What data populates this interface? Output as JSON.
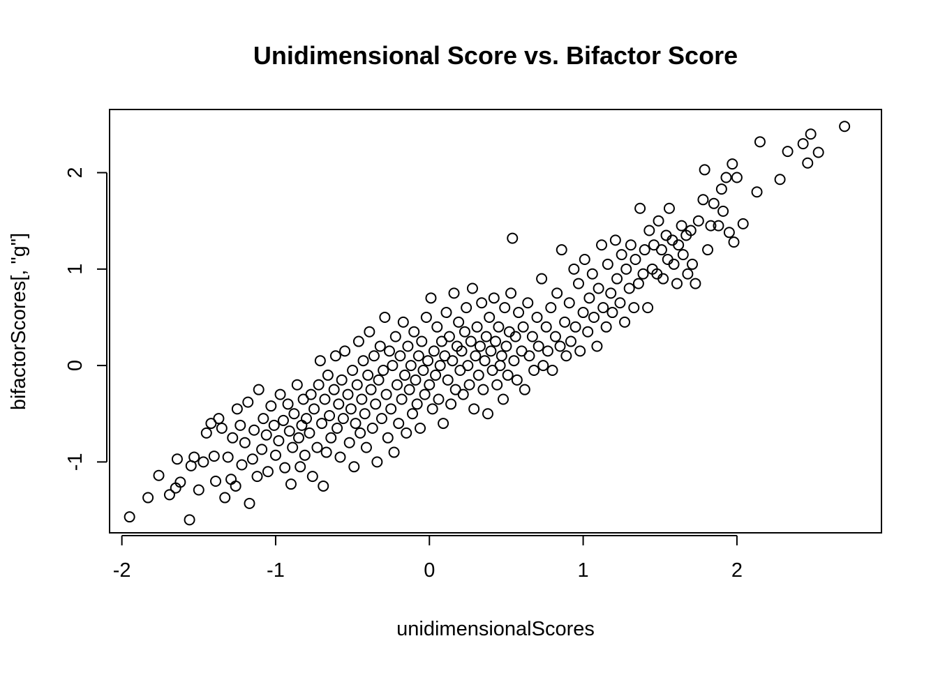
{
  "chart_data": {
    "type": "scatter",
    "title": "Unidimensional Score vs. Bifactor Score",
    "xlabel": "unidimensionalScores",
    "ylabel": "bifactorScores[, \"g\"]",
    "xlim": [
      -2.08,
      2.94
    ],
    "ylim": [
      -1.735,
      2.655
    ],
    "xticks": [
      -2,
      -1,
      0,
      1,
      2
    ],
    "xtick_labels": [
      "-2",
      "-1",
      "0",
      "1",
      "2"
    ],
    "yticks": [
      -1,
      0,
      1,
      2
    ],
    "ytick_labels": [
      "-1",
      "0",
      "1",
      "2"
    ],
    "grid": false,
    "legend": "none",
    "marker": "open-circle",
    "point_color": "#000000",
    "points": [
      [
        -1.95,
        -1.57
      ],
      [
        -1.83,
        -1.37
      ],
      [
        -1.76,
        -1.14
      ],
      [
        -1.69,
        -1.34
      ],
      [
        -1.65,
        -1.27
      ],
      [
        -1.64,
        -0.97
      ],
      [
        -1.62,
        -1.21
      ],
      [
        -1.56,
        -1.6
      ],
      [
        -1.55,
        -1.04
      ],
      [
        -1.53,
        -0.95
      ],
      [
        -1.5,
        -1.29
      ],
      [
        -1.47,
        -1.0
      ],
      [
        -1.45,
        -0.7
      ],
      [
        -1.42,
        -0.6
      ],
      [
        -1.4,
        -0.94
      ],
      [
        -1.39,
        -1.2
      ],
      [
        -1.37,
        -0.55
      ],
      [
        -1.35,
        -0.65
      ],
      [
        -1.33,
        -1.37
      ],
      [
        -1.31,
        -0.95
      ],
      [
        -1.29,
        -1.18
      ],
      [
        -1.28,
        -0.75
      ],
      [
        -1.26,
        -1.25
      ],
      [
        -1.25,
        -0.45
      ],
      [
        -1.23,
        -0.62
      ],
      [
        -1.22,
        -1.03
      ],
      [
        -1.2,
        -0.8
      ],
      [
        -1.18,
        -0.38
      ],
      [
        -1.17,
        -1.43
      ],
      [
        -1.15,
        -0.97
      ],
      [
        -1.14,
        -0.67
      ],
      [
        -1.12,
        -1.15
      ],
      [
        -1.11,
        -0.25
      ],
      [
        -1.09,
        -0.87
      ],
      [
        -1.08,
        -0.55
      ],
      [
        -1.06,
        -0.72
      ],
      [
        -1.05,
        -1.1
      ],
      [
        -1.03,
        -0.42
      ],
      [
        -1.01,
        -0.62
      ],
      [
        -1.0,
        -0.93
      ],
      [
        -0.98,
        -0.78
      ],
      [
        -0.97,
        -0.3
      ],
      [
        -0.95,
        -0.57
      ],
      [
        -0.94,
        -1.06
      ],
      [
        -0.92,
        -0.4
      ],
      [
        -0.91,
        -0.68
      ],
      [
        -0.9,
        -1.23
      ],
      [
        -0.89,
        -0.85
      ],
      [
        -0.88,
        -0.5
      ],
      [
        -0.86,
        -0.2
      ],
      [
        -0.85,
        -0.75
      ],
      [
        -0.84,
        -1.05
      ],
      [
        -0.83,
        -0.62
      ],
      [
        -0.82,
        -0.35
      ],
      [
        -0.81,
        -0.93
      ],
      [
        -0.8,
        -0.55
      ],
      [
        -0.78,
        -0.7
      ],
      [
        -0.77,
        -0.3
      ],
      [
        -0.76,
        -1.15
      ],
      [
        -0.75,
        -0.45
      ],
      [
        -0.73,
        -0.85
      ],
      [
        -0.72,
        -0.2
      ],
      [
        -0.71,
        0.05
      ],
      [
        -0.7,
        -0.6
      ],
      [
        -0.69,
        -1.25
      ],
      [
        -0.68,
        -0.35
      ],
      [
        -0.67,
        -0.9
      ],
      [
        -0.66,
        -0.1
      ],
      [
        -0.65,
        -0.52
      ],
      [
        -0.64,
        -0.75
      ],
      [
        -0.62,
        -0.25
      ],
      [
        -0.61,
        0.1
      ],
      [
        -0.6,
        -0.65
      ],
      [
        -0.59,
        -0.4
      ],
      [
        -0.58,
        -0.95
      ],
      [
        -0.57,
        -0.15
      ],
      [
        -0.56,
        -0.55
      ],
      [
        -0.55,
        0.15
      ],
      [
        -0.53,
        -0.3
      ],
      [
        -0.52,
        -0.8
      ],
      [
        -0.51,
        -0.45
      ],
      [
        -0.5,
        -0.05
      ],
      [
        -0.49,
        -1.05
      ],
      [
        -0.48,
        -0.6
      ],
      [
        -0.47,
        -0.2
      ],
      [
        -0.46,
        0.25
      ],
      [
        -0.45,
        -0.7
      ],
      [
        -0.44,
        -0.35
      ],
      [
        -0.43,
        0.05
      ],
      [
        -0.42,
        -0.5
      ],
      [
        -0.41,
        -0.85
      ],
      [
        -0.4,
        -0.1
      ],
      [
        -0.39,
        0.35
      ],
      [
        -0.38,
        -0.25
      ],
      [
        -0.37,
        -0.65
      ],
      [
        -0.36,
        0.1
      ],
      [
        -0.35,
        -0.4
      ],
      [
        -0.34,
        -1.0
      ],
      [
        -0.33,
        -0.15
      ],
      [
        -0.32,
        0.2
      ],
      [
        -0.31,
        -0.55
      ],
      [
        -0.3,
        -0.05
      ],
      [
        -0.29,
        0.5
      ],
      [
        -0.28,
        -0.3
      ],
      [
        -0.27,
        -0.75
      ],
      [
        -0.26,
        0.15
      ],
      [
        -0.25,
        -0.45
      ],
      [
        -0.24,
        0.0
      ],
      [
        -0.23,
        -0.9
      ],
      [
        -0.22,
        0.3
      ],
      [
        -0.21,
        -0.2
      ],
      [
        -0.2,
        -0.6
      ],
      [
        -0.19,
        0.1
      ],
      [
        -0.18,
        -0.35
      ],
      [
        -0.17,
        0.45
      ],
      [
        -0.16,
        -0.1
      ],
      [
        -0.15,
        -0.7
      ],
      [
        -0.14,
        0.2
      ],
      [
        -0.13,
        -0.25
      ],
      [
        -0.12,
        0.0
      ],
      [
        -0.11,
        -0.5
      ],
      [
        -0.1,
        0.35
      ],
      [
        -0.09,
        -0.15
      ],
      [
        -0.08,
        -0.4
      ],
      [
        -0.07,
        0.1
      ],
      [
        -0.06,
        -0.65
      ],
      [
        -0.05,
        0.25
      ],
      [
        -0.04,
        -0.05
      ],
      [
        -0.03,
        -0.3
      ],
      [
        -0.02,
        0.5
      ],
      [
        -0.01,
        0.05
      ],
      [
        0.0,
        -0.2
      ],
      [
        0.01,
        0.7
      ],
      [
        0.02,
        -0.45
      ],
      [
        0.03,
        0.15
      ],
      [
        0.04,
        -0.1
      ],
      [
        0.05,
        0.4
      ],
      [
        0.06,
        -0.35
      ],
      [
        0.07,
        0.0
      ],
      [
        0.08,
        0.25
      ],
      [
        0.09,
        -0.6
      ],
      [
        0.1,
        0.1
      ],
      [
        0.11,
        0.55
      ],
      [
        0.12,
        -0.15
      ],
      [
        0.13,
        0.3
      ],
      [
        0.14,
        -0.4
      ],
      [
        0.15,
        0.05
      ],
      [
        0.16,
        0.75
      ],
      [
        0.17,
        -0.25
      ],
      [
        0.18,
        0.2
      ],
      [
        0.19,
        0.45
      ],
      [
        0.2,
        -0.05
      ],
      [
        0.21,
        0.15
      ],
      [
        0.22,
        -0.3
      ],
      [
        0.23,
        0.35
      ],
      [
        0.24,
        0.6
      ],
      [
        0.25,
        0.0
      ],
      [
        0.26,
        -0.2
      ],
      [
        0.27,
        0.25
      ],
      [
        0.28,
        0.8
      ],
      [
        0.29,
        -0.45
      ],
      [
        0.3,
        0.1
      ],
      [
        0.31,
        0.4
      ],
      [
        0.32,
        -0.1
      ],
      [
        0.33,
        0.2
      ],
      [
        0.34,
        0.65
      ],
      [
        0.35,
        -0.25
      ],
      [
        0.36,
        0.05
      ],
      [
        0.37,
        0.3
      ],
      [
        0.38,
        -0.5
      ],
      [
        0.39,
        0.5
      ],
      [
        0.4,
        0.15
      ],
      [
        0.41,
        -0.05
      ],
      [
        0.42,
        0.7
      ],
      [
        0.43,
        0.25
      ],
      [
        0.44,
        -0.2
      ],
      [
        0.45,
        0.4
      ],
      [
        0.46,
        0.0
      ],
      [
        0.47,
        0.1
      ],
      [
        0.48,
        -0.35
      ],
      [
        0.49,
        0.6
      ],
      [
        0.5,
        0.2
      ],
      [
        0.51,
        -0.1
      ],
      [
        0.52,
        0.35
      ],
      [
        0.53,
        0.75
      ],
      [
        0.54,
        1.32
      ],
      [
        0.55,
        0.05
      ],
      [
        0.56,
        0.3
      ],
      [
        0.57,
        -0.15
      ],
      [
        0.58,
        0.55
      ],
      [
        0.6,
        0.15
      ],
      [
        0.61,
        0.4
      ],
      [
        0.62,
        -0.25
      ],
      [
        0.64,
        0.65
      ],
      [
        0.65,
        0.1
      ],
      [
        0.67,
        0.3
      ],
      [
        0.68,
        -0.05
      ],
      [
        0.7,
        0.5
      ],
      [
        0.71,
        0.2
      ],
      [
        0.73,
        0.9
      ],
      [
        0.74,
        0.0
      ],
      [
        0.76,
        0.4
      ],
      [
        0.77,
        0.15
      ],
      [
        0.79,
        0.6
      ],
      [
        0.8,
        -0.05
      ],
      [
        0.82,
        0.3
      ],
      [
        0.83,
        0.75
      ],
      [
        0.85,
        0.2
      ],
      [
        0.86,
        1.2
      ],
      [
        0.88,
        0.45
      ],
      [
        0.89,
        0.1
      ],
      [
        0.91,
        0.65
      ],
      [
        0.92,
        0.25
      ],
      [
        0.94,
        1.0
      ],
      [
        0.95,
        0.4
      ],
      [
        0.97,
        0.85
      ],
      [
        0.98,
        0.15
      ],
      [
        1.0,
        0.55
      ],
      [
        1.01,
        1.1
      ],
      [
        1.03,
        0.35
      ],
      [
        1.04,
        0.7
      ],
      [
        1.06,
        0.95
      ],
      [
        1.07,
        0.5
      ],
      [
        1.09,
        0.2
      ],
      [
        1.1,
        0.8
      ],
      [
        1.12,
        1.25
      ],
      [
        1.13,
        0.6
      ],
      [
        1.15,
        0.4
      ],
      [
        1.16,
        1.05
      ],
      [
        1.18,
        0.75
      ],
      [
        1.19,
        0.55
      ],
      [
        1.21,
        1.3
      ],
      [
        1.22,
        0.9
      ],
      [
        1.24,
        0.65
      ],
      [
        1.25,
        1.15
      ],
      [
        1.27,
        0.45
      ],
      [
        1.28,
        1.0
      ],
      [
        1.3,
        0.8
      ],
      [
        1.31,
        1.25
      ],
      [
        1.33,
        0.6
      ],
      [
        1.34,
        1.1
      ],
      [
        1.36,
        0.85
      ],
      [
        1.37,
        1.63
      ],
      [
        1.39,
        0.95
      ],
      [
        1.4,
        1.2
      ],
      [
        1.42,
        0.6
      ],
      [
        1.43,
        1.4
      ],
      [
        1.45,
        1.0
      ],
      [
        1.46,
        1.25
      ],
      [
        1.48,
        0.95
      ],
      [
        1.49,
        1.5
      ],
      [
        1.51,
        1.2
      ],
      [
        1.52,
        0.9
      ],
      [
        1.54,
        1.35
      ],
      [
        1.55,
        1.1
      ],
      [
        1.56,
        1.63
      ],
      [
        1.58,
        1.3
      ],
      [
        1.59,
        1.05
      ],
      [
        1.61,
        0.85
      ],
      [
        1.62,
        1.25
      ],
      [
        1.64,
        1.45
      ],
      [
        1.65,
        1.15
      ],
      [
        1.67,
        1.35
      ],
      [
        1.68,
        0.95
      ],
      [
        1.7,
        1.4
      ],
      [
        1.71,
        1.05
      ],
      [
        1.73,
        0.85
      ],
      [
        1.75,
        1.5
      ],
      [
        1.78,
        1.72
      ],
      [
        1.79,
        2.03
      ],
      [
        1.81,
        1.2
      ],
      [
        1.83,
        1.45
      ],
      [
        1.85,
        1.68
      ],
      [
        1.88,
        1.45
      ],
      [
        1.9,
        1.83
      ],
      [
        1.91,
        1.6
      ],
      [
        1.93,
        1.95
      ],
      [
        1.95,
        1.38
      ],
      [
        1.97,
        2.09
      ],
      [
        1.98,
        1.28
      ],
      [
        2.0,
        1.95
      ],
      [
        2.04,
        1.47
      ],
      [
        2.13,
        1.8
      ],
      [
        2.15,
        2.32
      ],
      [
        2.28,
        1.93
      ],
      [
        2.33,
        2.22
      ],
      [
        2.43,
        2.3
      ],
      [
        2.46,
        2.1
      ],
      [
        2.48,
        2.4
      ],
      [
        2.53,
        2.21
      ],
      [
        2.7,
        2.48
      ]
    ]
  }
}
